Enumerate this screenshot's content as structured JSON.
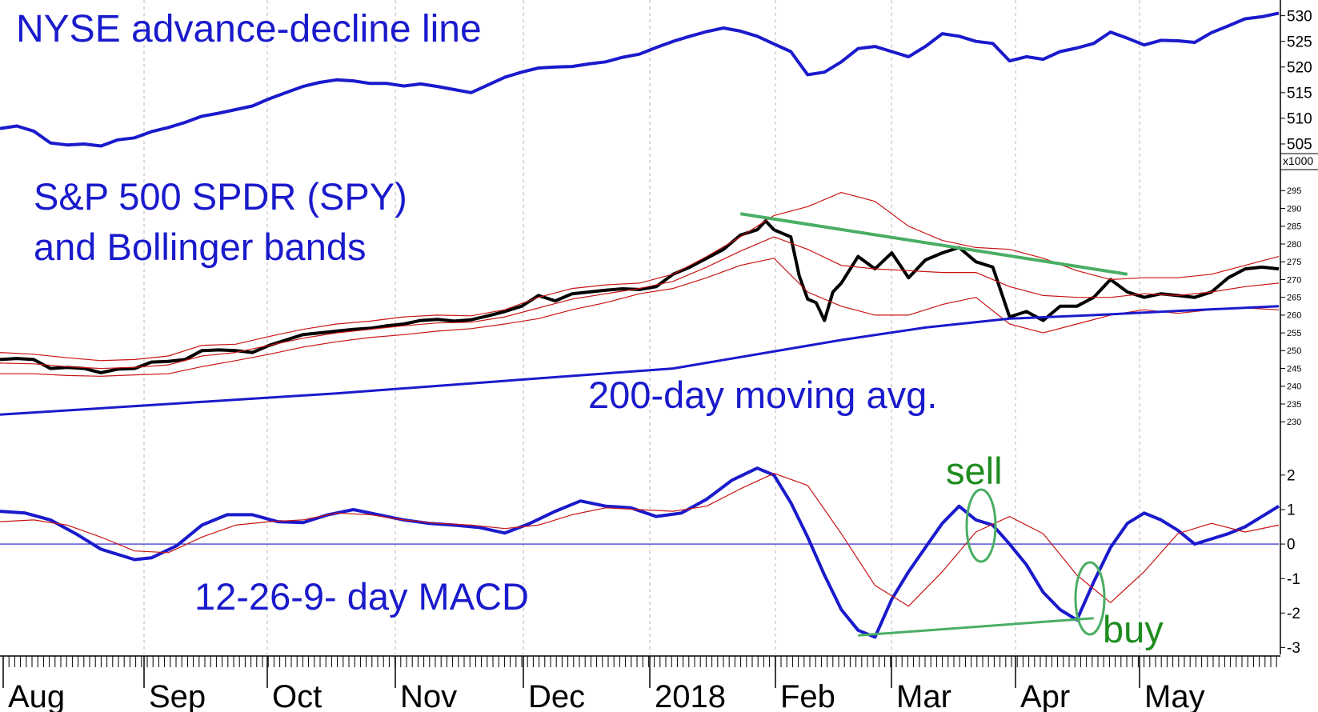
{
  "chart_data": [
    {
      "type": "line",
      "panel": "nyse-advance-decline",
      "title": "NYSE advance-decline line",
      "axis_multiplier": "x1000",
      "y_ticks": [
        505,
        510,
        515,
        520,
        525,
        530
      ],
      "ylim": [
        502.5,
        531.5
      ],
      "series": [
        {
          "color": "#1a1acc",
          "x": [
            0,
            20,
            40,
            60,
            80,
            100,
            120,
            140,
            160,
            180,
            200,
            220,
            240,
            260,
            280,
            300,
            320,
            340,
            360,
            380,
            400,
            420,
            440,
            460,
            480,
            500,
            520,
            540,
            560,
            580,
            600,
            620,
            640,
            660,
            680,
            700,
            720,
            740,
            760,
            780,
            800,
            820,
            840,
            860,
            880,
            900,
            920,
            940,
            960,
            980,
            1000,
            1020,
            1040,
            1060,
            1080,
            1100,
            1120,
            1140,
            1160,
            1180,
            1200,
            1220,
            1240,
            1260,
            1280,
            1300,
            1320,
            1340,
            1360,
            1380,
            1400,
            1420,
            1440,
            1460,
            1480,
            1500,
            1520
          ],
          "values": [
            508.0,
            508.5,
            507.5,
            505.2,
            504.8,
            505.0,
            504.6,
            505.8,
            506.2,
            507.4,
            508.2,
            509.2,
            510.4,
            511.0,
            511.7,
            512.4,
            513.8,
            515.0,
            516.2,
            517.0,
            517.5,
            517.3,
            516.8,
            516.8,
            516.3,
            516.7,
            516.2,
            515.6,
            515.0,
            516.5,
            518.0,
            519.0,
            519.8,
            520.0,
            520.1,
            520.6,
            521.0,
            521.9,
            522.5,
            523.8,
            525.0,
            526.0,
            526.9,
            527.6,
            527.0,
            526.0,
            524.5,
            523.0,
            518.5,
            519.0,
            521.0,
            523.6,
            524.0,
            523.0,
            522.0,
            524.0,
            526.5,
            526.0,
            525.0,
            524.6,
            521.2,
            522.0,
            521.5,
            523.0,
            523.7,
            524.6,
            526.8,
            525.6,
            524.3,
            525.2,
            525.1,
            524.8,
            526.7,
            528.0,
            529.4,
            529.8,
            530.5
          ]
        }
      ]
    },
    {
      "type": "line",
      "panel": "spy-bollinger",
      "title": "S&P 500 SPDR (SPY)",
      "subtitle": "and Bollinger bands",
      "annotation": "200-day moving avg.",
      "y_ticks": [
        230,
        235,
        240,
        245,
        250,
        255,
        260,
        265,
        270,
        275,
        280,
        285,
        290,
        295
      ],
      "ylim": [
        226,
        298
      ],
      "series": [
        {
          "color": "#000000",
          "x": [
            0,
            20,
            40,
            60,
            80,
            100,
            120,
            140,
            160,
            180,
            200,
            220,
            240,
            260,
            280,
            300,
            320,
            340,
            360,
            380,
            400,
            420,
            440,
            460,
            480,
            500,
            520,
            540,
            560,
            580,
            600,
            620,
            640,
            660,
            680,
            700,
            720,
            740,
            760,
            780,
            800,
            820,
            840,
            860,
            880,
            900,
            910,
            920,
            930,
            940,
            950,
            960,
            970,
            980,
            990,
            1000,
            1020,
            1040,
            1060,
            1080,
            1100,
            1120,
            1140,
            1160,
            1180,
            1200,
            1220,
            1240,
            1260,
            1280,
            1300,
            1320,
            1340,
            1360,
            1380,
            1400,
            1420,
            1440,
            1460,
            1480,
            1500,
            1520
          ],
          "values": [
            247.5,
            247.8,
            247.5,
            245.0,
            245.3,
            245.0,
            243.8,
            244.8,
            245.0,
            246.8,
            247.0,
            247.5,
            250.0,
            250.2,
            250.0,
            249.5,
            251.5,
            253.0,
            254.5,
            255.0,
            255.5,
            256.0,
            256.3,
            257.0,
            257.5,
            258.5,
            258.8,
            258.3,
            258.7,
            259.8,
            261.0,
            262.5,
            265.5,
            264.0,
            266.0,
            266.5,
            267.0,
            267.4,
            267.2,
            268.0,
            271.5,
            273.5,
            276.0,
            278.5,
            282.5,
            284.0,
            286.5,
            284.0,
            283.0,
            282.0,
            271.0,
            264.5,
            263.5,
            258.5,
            266.5,
            269.0,
            276.5,
            273.0,
            277.5,
            270.5,
            275.5,
            277.5,
            279.0,
            275.0,
            273.5,
            259.5,
            261.0,
            258.5,
            262.5,
            262.5,
            265.0,
            270.0,
            266.5,
            265.0,
            266.0,
            265.5,
            265.0,
            266.5,
            270.5,
            273.0,
            273.5,
            273.0
          ]
        },
        {
          "color": "#c81414",
          "x": [
            0,
            40,
            80,
            120,
            160,
            200,
            240,
            280,
            320,
            360,
            400,
            440,
            480,
            520,
            560,
            600,
            640,
            680,
            720,
            760,
            800,
            840,
            880,
            920,
            960,
            1000,
            1040,
            1080,
            1120,
            1160,
            1200,
            1240,
            1280,
            1320,
            1360,
            1400,
            1440,
            1480,
            1520
          ],
          "values": [
            249.5,
            249.0,
            248.0,
            247.2,
            247.5,
            248.5,
            251.5,
            251.8,
            254.0,
            256.0,
            257.5,
            258.3,
            259.5,
            260.0,
            259.8,
            261.5,
            265.0,
            267.5,
            268.5,
            269.0,
            271.5,
            276.5,
            282.0,
            288.0,
            290.5,
            294.5,
            292.0,
            285.0,
            281.0,
            279.0,
            278.5,
            276.0,
            272.5,
            270.0,
            270.5,
            270.5,
            271.5,
            274.0,
            276.5
          ]
        },
        {
          "color": "#c81414",
          "x": [
            0,
            40,
            80,
            120,
            160,
            200,
            240,
            280,
            320,
            360,
            400,
            440,
            480,
            520,
            560,
            600,
            640,
            680,
            720,
            760,
            800,
            840,
            880,
            920,
            960,
            1000,
            1040,
            1080,
            1120,
            1160,
            1200,
            1240,
            1280,
            1320,
            1360,
            1400,
            1440,
            1480,
            1520
          ],
          "values": [
            246.5,
            246.3,
            245.5,
            245.0,
            245.3,
            246.0,
            248.5,
            249.5,
            251.5,
            253.5,
            255.0,
            256.0,
            257.0,
            257.8,
            258.0,
            259.5,
            262.0,
            264.5,
            266.0,
            267.5,
            269.5,
            273.5,
            278.0,
            282.0,
            278.5,
            274.0,
            273.0,
            272.5,
            272.0,
            272.0,
            268.0,
            265.5,
            265.0,
            265.0,
            266.0,
            265.5,
            266.5,
            268.0,
            269.0
          ]
        },
        {
          "color": "#c81414",
          "x": [
            0,
            40,
            80,
            120,
            160,
            200,
            240,
            280,
            320,
            360,
            400,
            440,
            480,
            520,
            560,
            600,
            640,
            680,
            720,
            760,
            800,
            840,
            880,
            920,
            960,
            1000,
            1040,
            1080,
            1120,
            1160,
            1200,
            1240,
            1280,
            1320,
            1360,
            1400,
            1440,
            1480,
            1520
          ],
          "values": [
            243.5,
            243.5,
            243.0,
            242.8,
            243.2,
            243.5,
            245.5,
            247.2,
            249.0,
            251.0,
            252.5,
            253.7,
            254.5,
            255.5,
            256.2,
            257.5,
            259.0,
            261.5,
            263.5,
            266.0,
            267.5,
            270.5,
            274.0,
            276.0,
            266.5,
            262.5,
            260.0,
            260.0,
            263.0,
            265.0,
            257.5,
            255.0,
            257.5,
            260.0,
            261.5,
            260.5,
            261.5,
            262.0,
            261.5
          ]
        },
        {
          "color": "#1a1acc",
          "x": [
            0,
            200,
            400,
            600,
            800,
            1000,
            1100,
            1200,
            1300,
            1400,
            1520
          ],
          "values": [
            232.0,
            235.0,
            238.0,
            241.5,
            245.0,
            253.0,
            256.5,
            259.0,
            260.0,
            261.2,
            262.5
          ]
        },
        {
          "color": "#4aae64",
          "x": [
            880,
            1340
          ],
          "values": [
            288.5,
            271.5
          ]
        }
      ]
    },
    {
      "type": "line",
      "panel": "macd",
      "title": "12-26-9- day MACD",
      "y_ticks": [
        -3,
        -2,
        -1,
        0,
        1,
        2
      ],
      "ylim": [
        -3.2,
        2.6
      ],
      "series": [
        {
          "color": "#1a1acc",
          "x": [
            0,
            30,
            60,
            90,
            120,
            140,
            160,
            180,
            210,
            240,
            270,
            300,
            330,
            360,
            390,
            420,
            450,
            480,
            510,
            540,
            570,
            600,
            630,
            660,
            690,
            720,
            750,
            780,
            810,
            840,
            870,
            900,
            920,
            940,
            960,
            980,
            1000,
            1020,
            1040,
            1060,
            1080,
            1100,
            1120,
            1140,
            1160,
            1180,
            1200,
            1220,
            1240,
            1260,
            1280,
            1300,
            1320,
            1340,
            1360,
            1380,
            1400,
            1420,
            1440,
            1460,
            1480,
            1500,
            1520
          ],
          "values": [
            0.95,
            0.9,
            0.7,
            0.3,
            -0.15,
            -0.3,
            -0.45,
            -0.4,
            -0.05,
            0.55,
            0.85,
            0.85,
            0.65,
            0.62,
            0.85,
            1.0,
            0.85,
            0.7,
            0.6,
            0.55,
            0.48,
            0.32,
            0.6,
            0.95,
            1.25,
            1.1,
            1.05,
            0.8,
            0.9,
            1.3,
            1.85,
            2.2,
            2.0,
            1.2,
            0.2,
            -0.9,
            -1.9,
            -2.5,
            -2.7,
            -1.6,
            -0.8,
            -0.1,
            0.6,
            1.1,
            0.7,
            0.55,
            0.0,
            -0.6,
            -1.4,
            -1.9,
            -2.2,
            -1.1,
            -0.1,
            0.6,
            0.9,
            0.7,
            0.4,
            0.0,
            0.15,
            0.3,
            0.5,
            0.8,
            1.1
          ]
        },
        {
          "color": "#c81414",
          "x": [
            0,
            40,
            80,
            120,
            160,
            200,
            240,
            280,
            320,
            360,
            400,
            440,
            480,
            520,
            560,
            600,
            640,
            680,
            720,
            760,
            800,
            840,
            880,
            920,
            960,
            1000,
            1040,
            1080,
            1120,
            1160,
            1200,
            1240,
            1280,
            1320,
            1360,
            1400,
            1440,
            1480,
            1520
          ],
          "values": [
            0.65,
            0.7,
            0.55,
            0.2,
            -0.2,
            -0.25,
            0.2,
            0.55,
            0.65,
            0.7,
            0.9,
            0.85,
            0.7,
            0.6,
            0.55,
            0.45,
            0.55,
            0.85,
            1.05,
            1.0,
            0.95,
            1.1,
            1.6,
            2.05,
            1.7,
            0.3,
            -1.2,
            -1.8,
            -0.8,
            0.35,
            0.8,
            0.3,
            -0.9,
            -1.7,
            -0.8,
            0.3,
            0.6,
            0.35,
            0.55
          ]
        },
        {
          "color": "#4aae64",
          "x": [
            1020,
            1300
          ],
          "values": [
            -2.65,
            -2.15
          ]
        }
      ],
      "annotations": [
        "sell",
        "buy"
      ]
    }
  ],
  "x_axis": {
    "labels": [
      "Aug",
      "Sep",
      "Oct",
      "Nov",
      "Dec",
      "2018",
      "Feb",
      "Mar",
      "Apr",
      "May"
    ]
  }
}
